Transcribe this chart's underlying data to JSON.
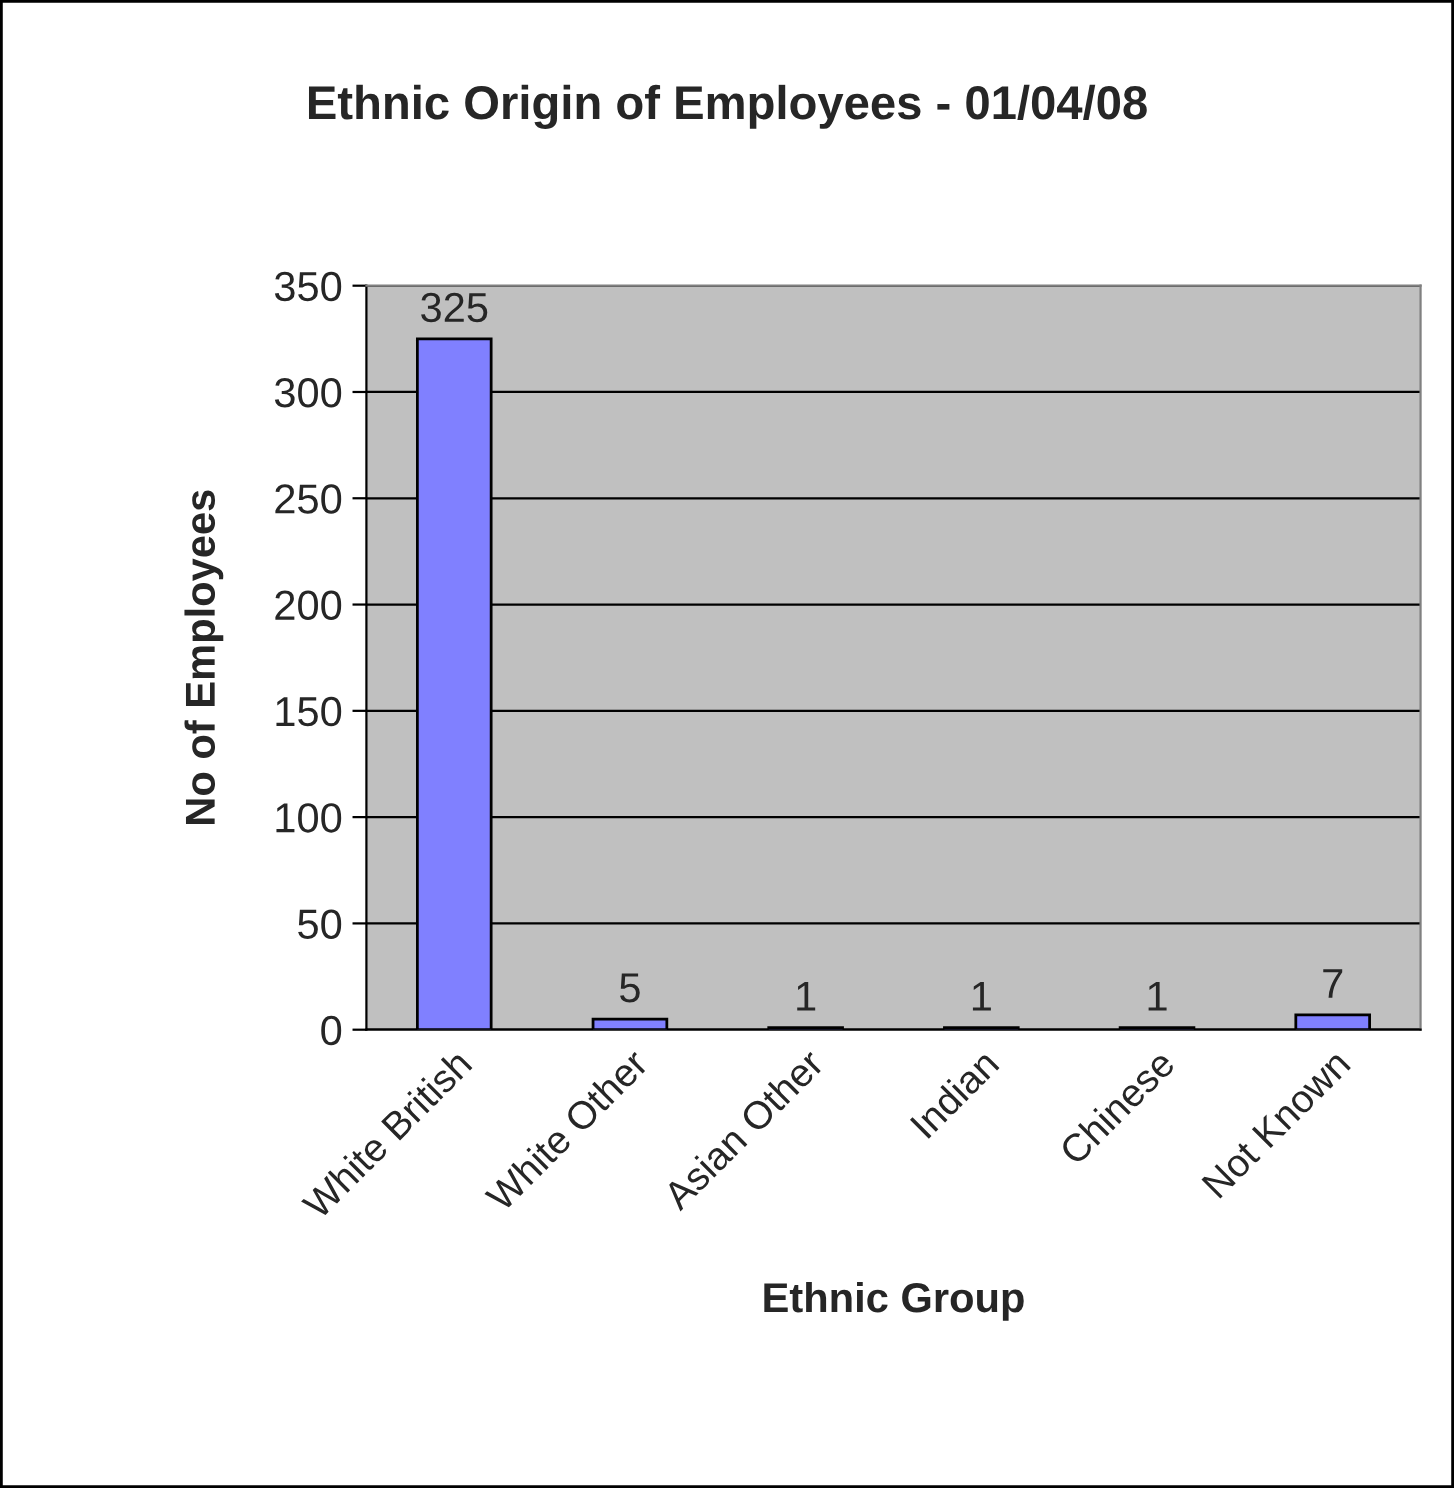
{
  "chart_data": {
    "type": "bar",
    "title": "Ethnic Origin of Employees - 01/04/08",
    "xlabel": "Ethnic Group",
    "ylabel": "No of Employees",
    "categories": [
      "White British",
      "White Other",
      "Asian Other",
      "Indian",
      "Chinese",
      "Not Known"
    ],
    "values": [
      325,
      5,
      1,
      1,
      1,
      7
    ],
    "color": "#8080ff",
    "ylim": [
      0,
      350
    ],
    "yticks": [
      0,
      50,
      100,
      150,
      200,
      250,
      300,
      350
    ],
    "grid": "y",
    "data_labels": true,
    "legend": false
  }
}
